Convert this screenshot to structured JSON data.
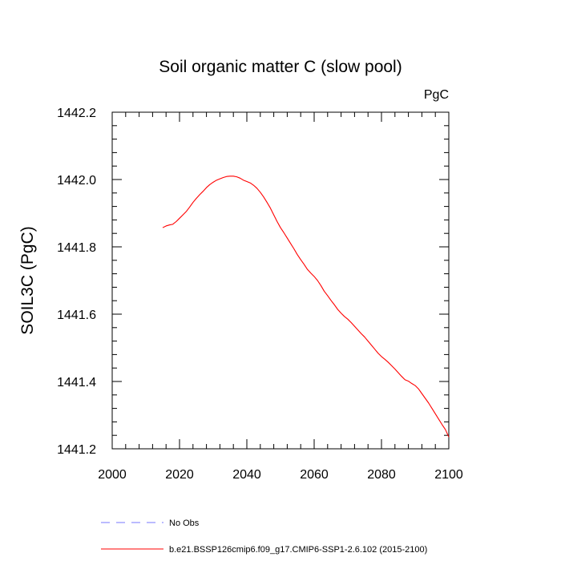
{
  "chart_data": {
    "type": "line",
    "title": "Soil organic matter C (slow pool)",
    "units": "PgC",
    "xlabel": "",
    "ylabel": "SOIL3C  (PgC)",
    "xlim": [
      2000,
      2100
    ],
    "ylim": [
      1441.2,
      1442.2
    ],
    "xticks": [
      2000,
      2020,
      2040,
      2060,
      2080,
      2100
    ],
    "yticks": [
      1441.2,
      1441.4,
      1441.6,
      1441.8,
      1442.0,
      1442.2
    ],
    "ytick_labels": [
      "1441.2",
      "1441.4",
      "1441.6",
      "1441.8",
      "1442.0",
      "1442.2"
    ],
    "grid": false,
    "legend_position": "bottom",
    "legend": [
      {
        "label": "No Obs",
        "color": "#7777ff",
        "style": "dashed"
      },
      {
        "label": "b.e21.BSSP126cmip6.f09_g17.CMIP6-SSP1-2.6.102 (2015-2100)",
        "color": "#ff0000",
        "style": "solid"
      }
    ],
    "series": [
      {
        "name": "b.e21.BSSP126cmip6.f09_g17.CMIP6-SSP1-2.6.102 (2015-2100)",
        "color": "#ff0000",
        "x": [
          2015,
          2016,
          2017,
          2018,
          2019,
          2020,
          2021,
          2022,
          2023,
          2024,
          2025,
          2026,
          2027,
          2028,
          2029,
          2030,
          2031,
          2032,
          2033,
          2034,
          2035,
          2036,
          2037,
          2038,
          2039,
          2040,
          2041,
          2042,
          2043,
          2044,
          2045,
          2046,
          2047,
          2048,
          2049,
          2050,
          2051,
          2052,
          2053,
          2054,
          2055,
          2056,
          2057,
          2058,
          2059,
          2060,
          2061,
          2062,
          2063,
          2064,
          2065,
          2066,
          2067,
          2068,
          2069,
          2070,
          2071,
          2072,
          2073,
          2074,
          2075,
          2076,
          2077,
          2078,
          2079,
          2080,
          2081,
          2082,
          2083,
          2084,
          2085,
          2086,
          2087,
          2088,
          2089,
          2090,
          2091,
          2092,
          2093,
          2094,
          2095,
          2096,
          2097,
          2098,
          2099,
          2100
        ],
        "values": [
          1441.857,
          1441.862,
          1441.865,
          1441.867,
          1441.875,
          1441.885,
          1441.895,
          1441.905,
          1441.918,
          1441.932,
          1441.944,
          1441.955,
          1441.965,
          1441.976,
          1441.985,
          1441.992,
          1441.998,
          1442.002,
          1442.006,
          1442.009,
          1442.01,
          1442.01,
          1442.008,
          1442.004,
          1441.998,
          1441.994,
          1441.99,
          1441.983,
          1441.974,
          1441.962,
          1441.948,
          1441.932,
          1441.915,
          1441.895,
          1441.875,
          1441.857,
          1441.842,
          1441.826,
          1441.81,
          1441.794,
          1441.777,
          1441.762,
          1441.748,
          1441.733,
          1441.722,
          1441.712,
          1441.7,
          1441.685,
          1441.668,
          1441.655,
          1441.641,
          1441.628,
          1441.614,
          1441.603,
          1441.593,
          1441.585,
          1441.575,
          1441.564,
          1441.553,
          1441.542,
          1441.532,
          1441.52,
          1441.508,
          1441.496,
          1441.484,
          1441.474,
          1441.466,
          1441.457,
          1441.447,
          1441.437,
          1441.426,
          1441.415,
          1441.405,
          1441.401,
          1441.394,
          1441.388,
          1441.378,
          1441.364,
          1441.35,
          1441.336,
          1441.32,
          1441.304,
          1441.288,
          1441.272,
          1441.257,
          1441.235
        ]
      }
    ]
  }
}
